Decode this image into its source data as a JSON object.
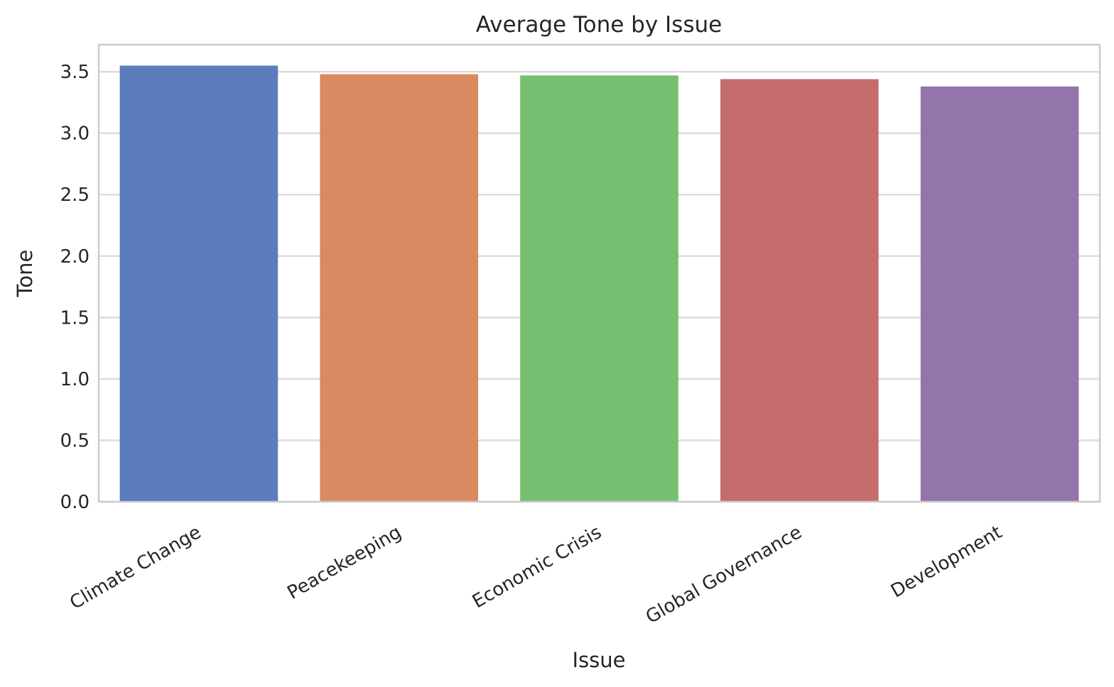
{
  "chart_data": {
    "type": "bar",
    "title": "Average Tone by Issue",
    "xlabel": "Issue",
    "ylabel": "Tone",
    "categories": [
      "Climate Change",
      "Peacekeeping",
      "Economic Crisis",
      "Global Governance",
      "Development"
    ],
    "values": [
      3.55,
      3.48,
      3.47,
      3.44,
      3.38
    ],
    "colors": [
      "#5b7dbe",
      "#d98a60",
      "#77bf70",
      "#c56d6c",
      "#9175ab"
    ],
    "ylim": [
      0,
      3.72
    ],
    "yticks": [
      "0.0",
      "0.5",
      "1.0",
      "1.5",
      "2.0",
      "2.5",
      "3.0",
      "3.5"
    ],
    "grid": "horizontal",
    "legend": "none"
  }
}
